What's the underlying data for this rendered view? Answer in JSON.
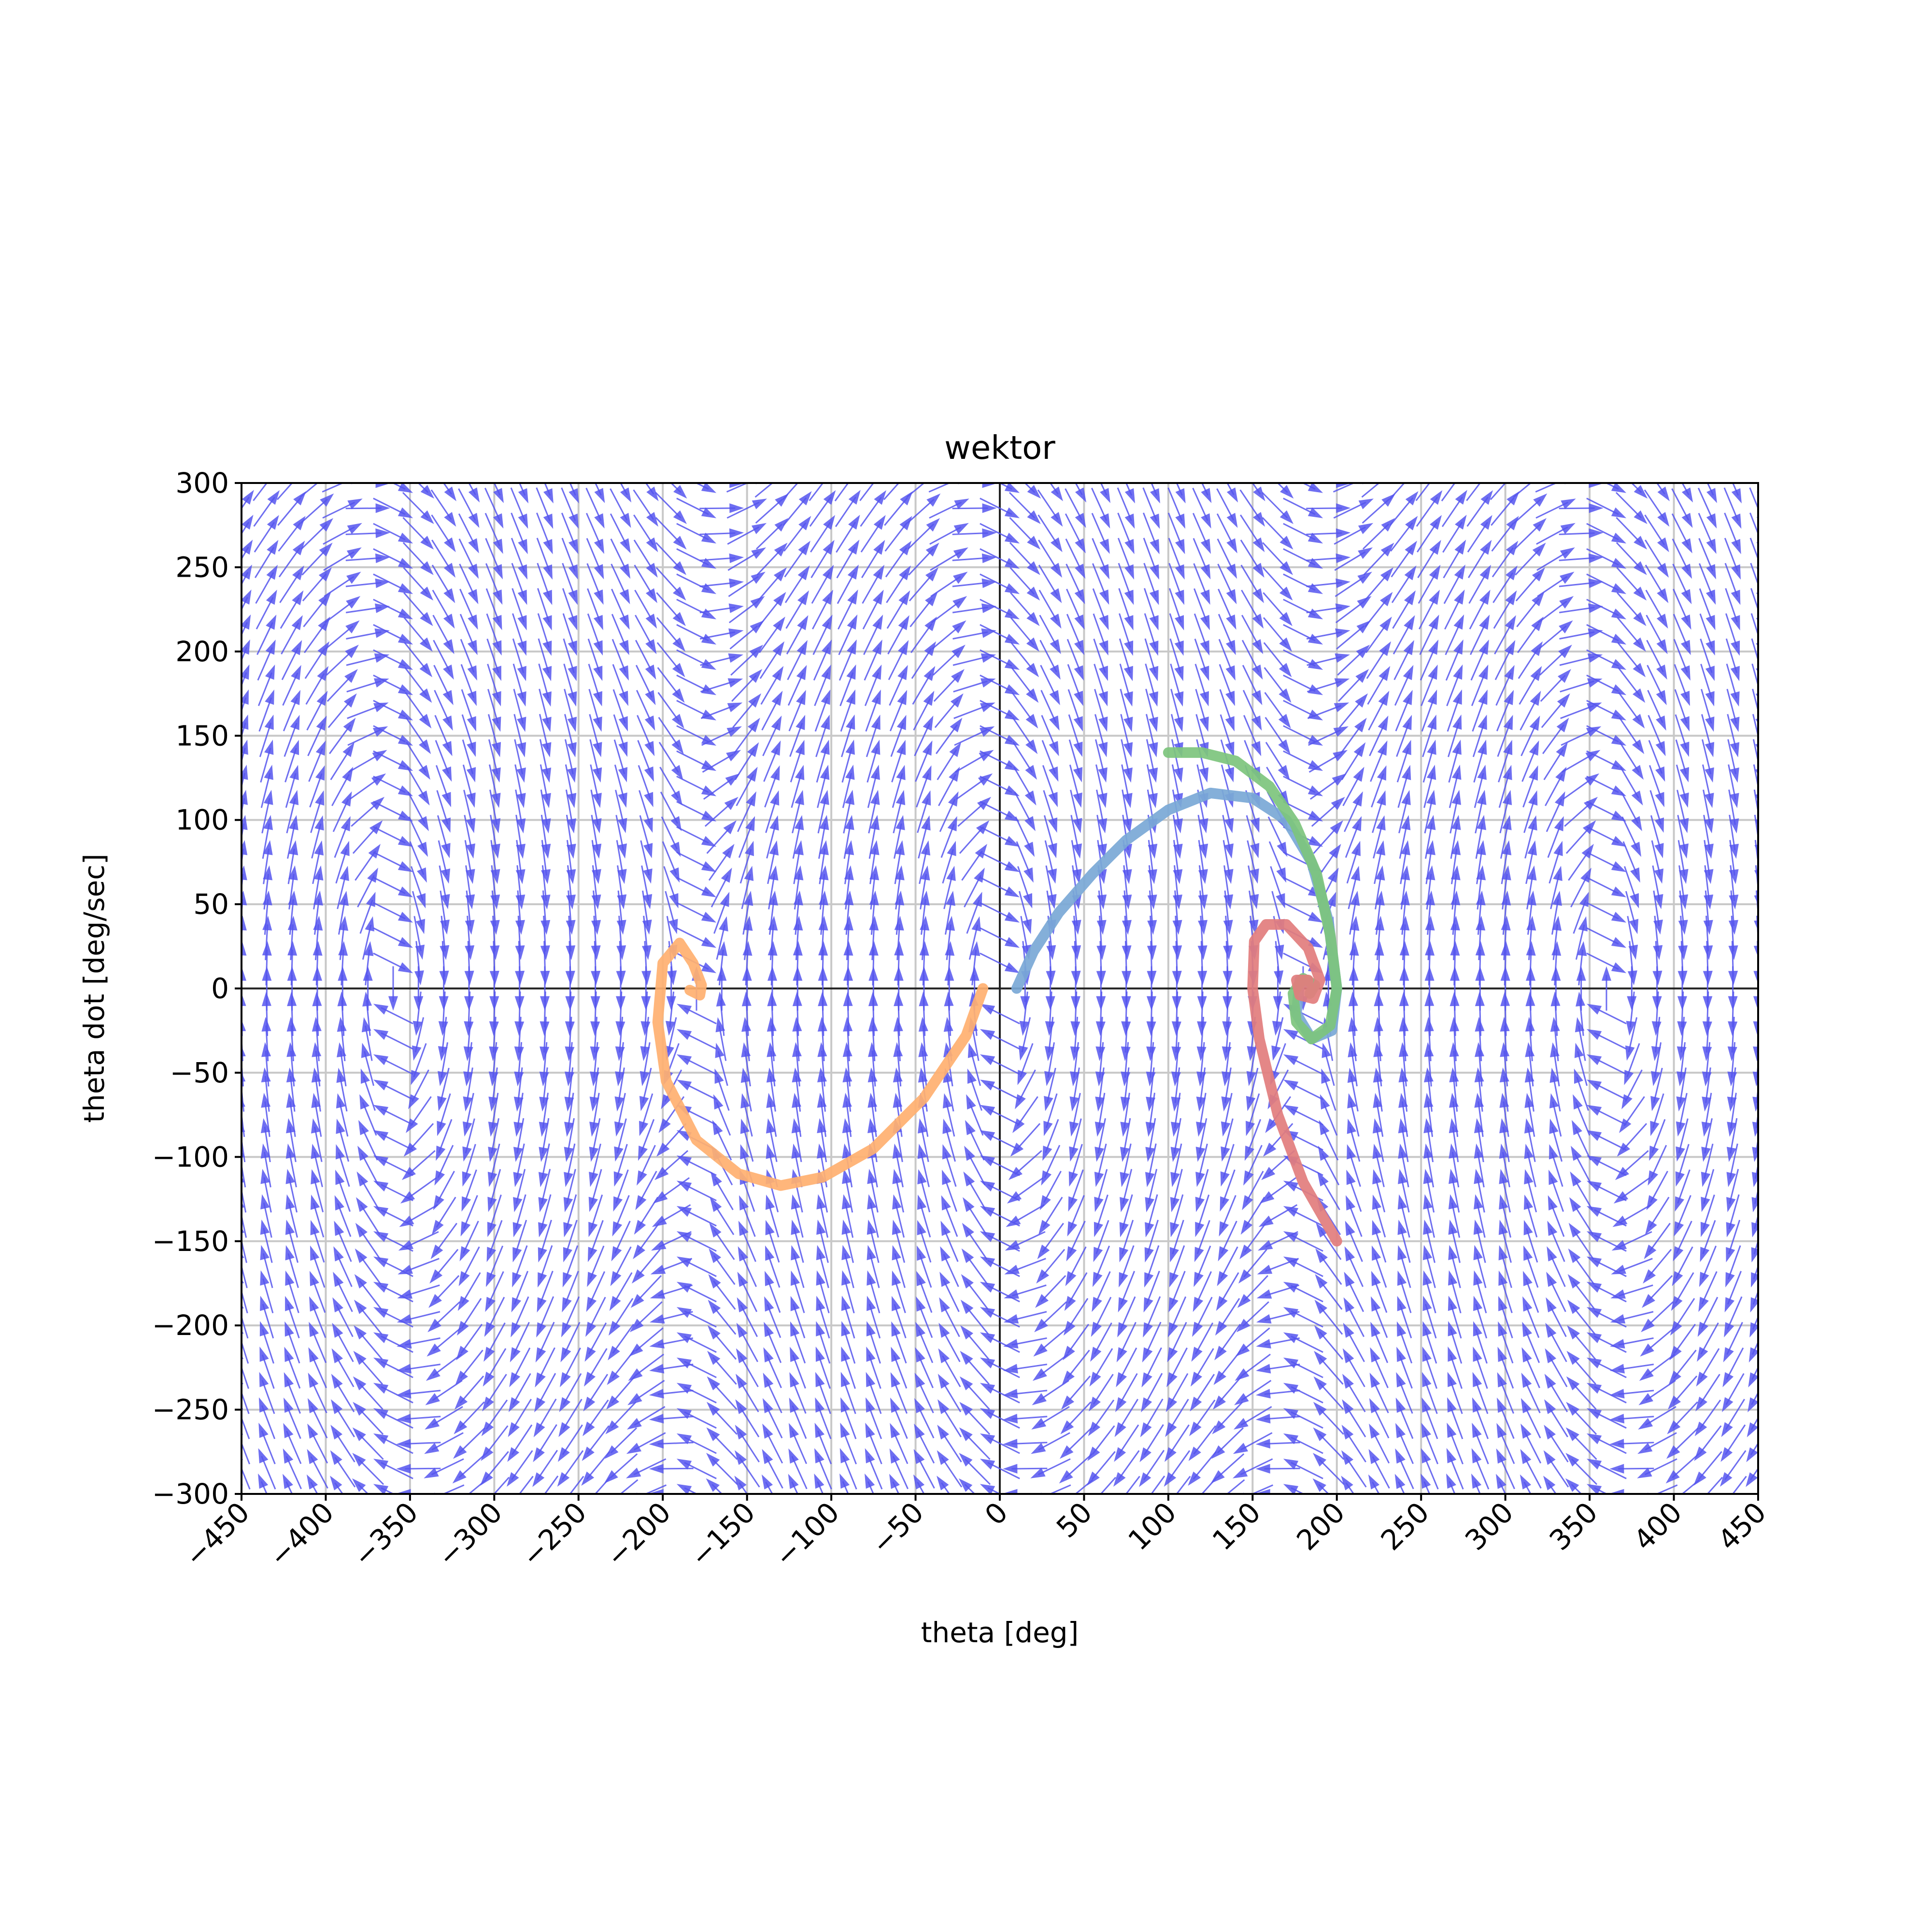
{
  "chart_data": {
    "type": "quiver",
    "title": "wektor",
    "xlabel": "theta [deg]",
    "ylabel": "theta dot [deg/sec]",
    "xlim": [
      -450,
      450
    ],
    "ylim": [
      -300,
      300
    ],
    "xticks": [
      -450,
      -400,
      -350,
      -300,
      -250,
      -200,
      -150,
      -100,
      -50,
      0,
      50,
      100,
      150,
      200,
      250,
      300,
      350,
      400,
      450
    ],
    "yticks": [
      -300,
      -250,
      -200,
      -150,
      -100,
      -50,
      0,
      50,
      100,
      150,
      200,
      250,
      300
    ],
    "xtick_labels": [
      "−450",
      "−400",
      "−350",
      "−300",
      "−250",
      "−200",
      "−150",
      "−100",
      "−50",
      "0",
      "50",
      "100",
      "150",
      "200",
      "250",
      "300",
      "350",
      "400",
      "450"
    ],
    "ytick_labels": [
      "−300",
      "−250",
      "−200",
      "−150",
      "−100",
      "−50",
      "0",
      "50",
      "100",
      "150",
      "200",
      "250",
      "300"
    ],
    "grid": true,
    "zero_lines": true,
    "field": {
      "color": "#5555ee",
      "x_step": 15,
      "y_step": 15
    },
    "series": [
      {
        "color": "#7aa8d6",
        "points": [
          [
            10,
            0
          ],
          [
            20,
            22
          ],
          [
            35,
            45
          ],
          [
            55,
            68
          ],
          [
            75,
            88
          ],
          [
            100,
            106
          ],
          [
            125,
            116
          ],
          [
            150,
            113
          ],
          [
            170,
            100
          ],
          [
            185,
            75
          ],
          [
            195,
            40
          ],
          [
            200,
            0
          ],
          [
            197,
            -25
          ],
          [
            185,
            -30
          ],
          [
            176,
            -15
          ],
          [
            178,
            5
          ],
          [
            187,
            2
          ]
        ]
      },
      {
        "color": "#ffb070",
        "points": [
          [
            -10,
            0
          ],
          [
            -20,
            -28
          ],
          [
            -45,
            -65
          ],
          [
            -75,
            -95
          ],
          [
            -105,
            -112
          ],
          [
            -130,
            -117
          ],
          [
            -155,
            -110
          ],
          [
            -180,
            -90
          ],
          [
            -198,
            -55
          ],
          [
            -203,
            -20
          ],
          [
            -200,
            15
          ],
          [
            -190,
            27
          ],
          [
            -182,
            15
          ],
          [
            -177,
            2
          ],
          [
            -178,
            -4
          ],
          [
            -184,
            -1
          ]
        ]
      },
      {
        "color": "#7dc47d",
        "points": [
          [
            100,
            140
          ],
          [
            120,
            140
          ],
          [
            140,
            135
          ],
          [
            160,
            120
          ],
          [
            175,
            98
          ],
          [
            188,
            68
          ],
          [
            196,
            32
          ],
          [
            200,
            0
          ],
          [
            196,
            -22
          ],
          [
            185,
            -30
          ],
          [
            176,
            -20
          ],
          [
            174,
            -3
          ],
          [
            180,
            6
          ],
          [
            187,
            2
          ],
          [
            184,
            -3
          ]
        ]
      },
      {
        "color": "#e27d7d",
        "points": [
          [
            200,
            -150
          ],
          [
            180,
            -115
          ],
          [
            165,
            -75
          ],
          [
            154,
            -30
          ],
          [
            150,
            0
          ],
          [
            151,
            28
          ],
          [
            158,
            38
          ],
          [
            170,
            38
          ],
          [
            183,
            24
          ],
          [
            190,
            5
          ],
          [
            186,
            -6
          ],
          [
            178,
            -4
          ],
          [
            176,
            5
          ],
          [
            183,
            5
          ],
          [
            182,
            -1
          ]
        ]
      }
    ]
  }
}
